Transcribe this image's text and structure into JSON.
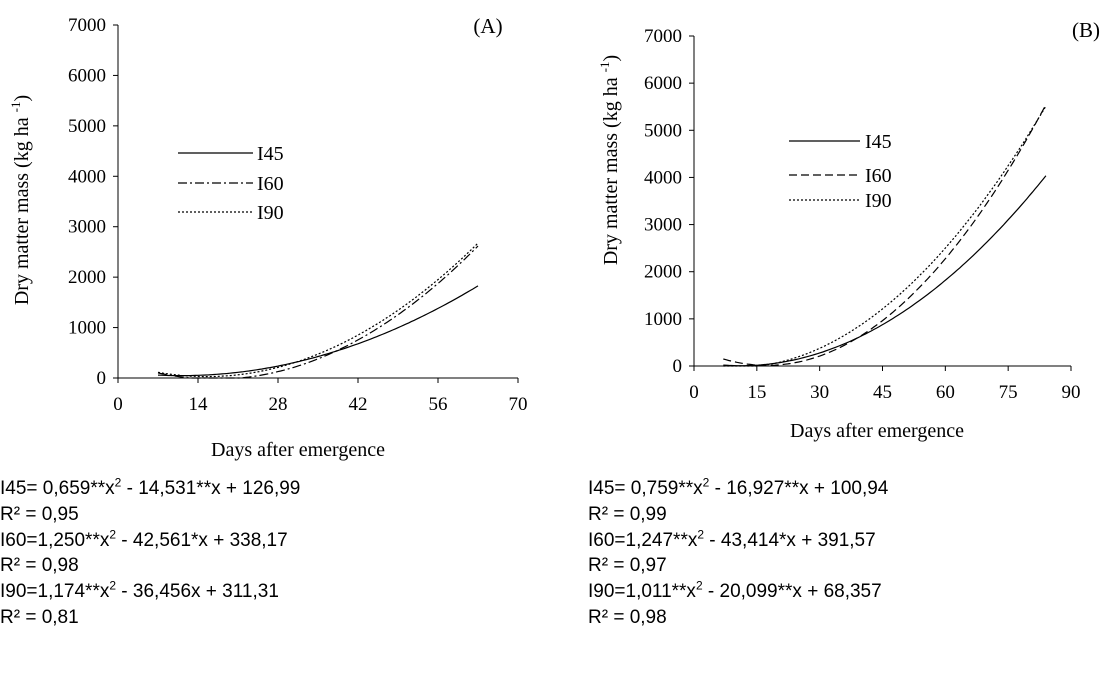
{
  "chart_data": [
    {
      "panel_label": "(A)",
      "type": "line",
      "xlabel": "Days after emergence",
      "ylabel": "Dry matter mass (kg ha ",
      "ylabel_sup": "-1",
      "ylabel_end": ")",
      "xlim": [
        0,
        70
      ],
      "ylim": [
        0,
        7000
      ],
      "xticks": [
        0,
        14,
        28,
        42,
        56,
        70
      ],
      "yticks": [
        0,
        1000,
        2000,
        3000,
        4000,
        5000,
        6000,
        7000
      ],
      "x_range": [
        7,
        63
      ],
      "grid": false,
      "legend_position": "upper-left",
      "series": [
        {
          "name": "I45",
          "style": "solid",
          "coef": [
            0.659,
            -14.531,
            126.99
          ]
        },
        {
          "name": "I60",
          "style": "dashdot",
          "coef": [
            1.25,
            -42.561,
            338.17
          ]
        },
        {
          "name": "I90",
          "style": "dotted",
          "coef": [
            1.174,
            -36.456,
            311.31
          ]
        }
      ],
      "equations": [
        {
          "prefix": "I45= 0,659**x",
          "sup": "2",
          "suffix": " - 14,531**x + 126,99"
        },
        {
          "prefix": "R² = 0,95",
          "sup": "",
          "suffix": ""
        },
        {
          "prefix": "I60=1,250**x",
          "sup": "2",
          "suffix": " - 42,561*x + 338,17"
        },
        {
          "prefix": "R² = 0,98",
          "sup": "",
          "suffix": ""
        },
        {
          "prefix": "I90=1,174**x",
          "sup": "2",
          "suffix": " - 36,456x + 311,31"
        },
        {
          "prefix": "R² = 0,81",
          "sup": "",
          "suffix": ""
        }
      ]
    },
    {
      "panel_label": "(B)",
      "type": "line",
      "xlabel": "Days after emergence",
      "ylabel": "Dry matter mass (kg ha ",
      "ylabel_sup": "-1",
      "ylabel_end": ")",
      "xlim": [
        0,
        90
      ],
      "ylim": [
        0,
        7000
      ],
      "xticks": [
        0,
        15,
        30,
        45,
        60,
        75,
        90
      ],
      "yticks": [
        0,
        1000,
        2000,
        3000,
        4000,
        5000,
        6000,
        7000
      ],
      "x_range": [
        7,
        84
      ],
      "grid": false,
      "legend_position": "upper-left",
      "series": [
        {
          "name": "I45",
          "style": "solid",
          "coef": [
            0.759,
            -16.927,
            100.94
          ]
        },
        {
          "name": "I60",
          "style": "dashed",
          "coef": [
            1.247,
            -43.414,
            391.57
          ]
        },
        {
          "name": "I90",
          "style": "dotted",
          "coef": [
            1.011,
            -20.099,
            68.357
          ]
        }
      ],
      "equations": [
        {
          "prefix": "I45= 0,759**x",
          "sup": "2",
          "suffix": " - 16,927**x + 100,94"
        },
        {
          "prefix": "R² = 0,99",
          "sup": "",
          "suffix": ""
        },
        {
          "prefix": "I60=1,247**x",
          "sup": "2",
          "suffix": " - 43,414*x + 391,57"
        },
        {
          "prefix": "R² = 0,97",
          "sup": "",
          "suffix": ""
        },
        {
          "prefix": "I90=1,011**x",
          "sup": "2",
          "suffix": " - 20,099**x + 68,357"
        },
        {
          "prefix": "R² = 0,98",
          "sup": "",
          "suffix": ""
        }
      ]
    }
  ]
}
